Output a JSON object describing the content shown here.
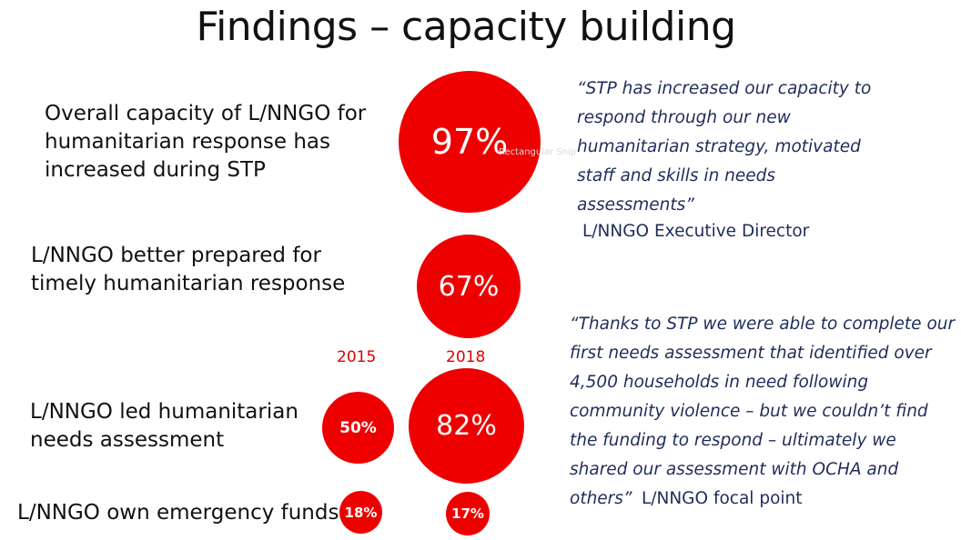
{
  "title": "Findings – capacity building",
  "rows": [
    {
      "label": "Overall capacity of  L/NNGO for humanitarian response has increased during STP",
      "value_2018": "97%",
      "value_2015": null
    },
    {
      "label": "L/NNGO better prepared for timely humanitarian response",
      "value_2018": "67%",
      "value_2015": null
    },
    {
      "label": "L/NNGO led humanitarian needs assessment",
      "value_2018": "82%",
      "value_2015": "50%"
    },
    {
      "label": "L/NNGO own emergency funds",
      "value_2018": "17%",
      "value_2015": "18%"
    }
  ],
  "years": {
    "y2015": "2015",
    "y2018": "2018"
  },
  "quote1": {
    "text": "“STP has increased our capacity to respond through our new humanitarian strategy, motivated staff and skills in needs assessments”",
    "attribution": "L/NNGO Executive Director"
  },
  "quote2": {
    "text": "“Thanks to STP we were able to complete our first needs assessment that identified over 4,500 households in need following community violence – but we couldn’t find the funding to respond – ultimately we shared our assessment with OCHA and others”",
    "attribution": "L/NNGO focal point"
  },
  "watermark": "Rectangular Snip",
  "colors": {
    "bubble": "#ee0000",
    "quote": "#1f2d5a",
    "year": "#e00000"
  }
}
